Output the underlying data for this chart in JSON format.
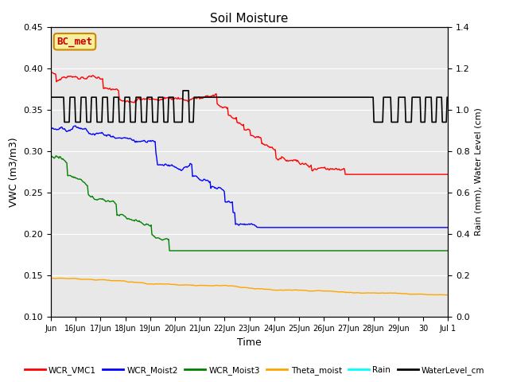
{
  "title": "Soil Moisture",
  "xlabel": "Time",
  "ylabel_left": "VWC (m3/m3)",
  "ylabel_right": "Rain (mm), Water Level (cm)",
  "ylim_left": [
    0.1,
    0.45
  ],
  "ylim_right": [
    0.0,
    1.4
  ],
  "yticks_left": [
    0.1,
    0.15,
    0.2,
    0.25,
    0.3,
    0.35,
    0.4,
    0.45
  ],
  "yticks_right": [
    0.0,
    0.2,
    0.4,
    0.6,
    0.8,
    1.0,
    1.2,
    1.4
  ],
  "bg_color": "#e8e8e8",
  "annotation_text": "BC_met",
  "annotation_color": "#cc0000",
  "annotation_bg": "#f5f0a0",
  "annotation_border": "#cc8800",
  "tick_labels": [
    "Jun",
    "16Jun",
    "17Jun",
    "18Jun",
    "19Jun",
    "20Jun",
    "21Jun",
    "22Jun",
    "23Jun",
    "24Jun",
    "25Jun",
    "26Jun",
    "27Jun",
    "28Jun",
    "29Jun",
    "30",
    "Jul 1"
  ],
  "legend_labels": [
    "WCR_VMC1",
    "WCR_Moist2",
    "WCR_Moist3",
    "Theta_moist",
    "Rain",
    "WaterLevel_cm"
  ],
  "legend_colors": [
    "red",
    "blue",
    "green",
    "orange",
    "cyan",
    "black"
  ]
}
